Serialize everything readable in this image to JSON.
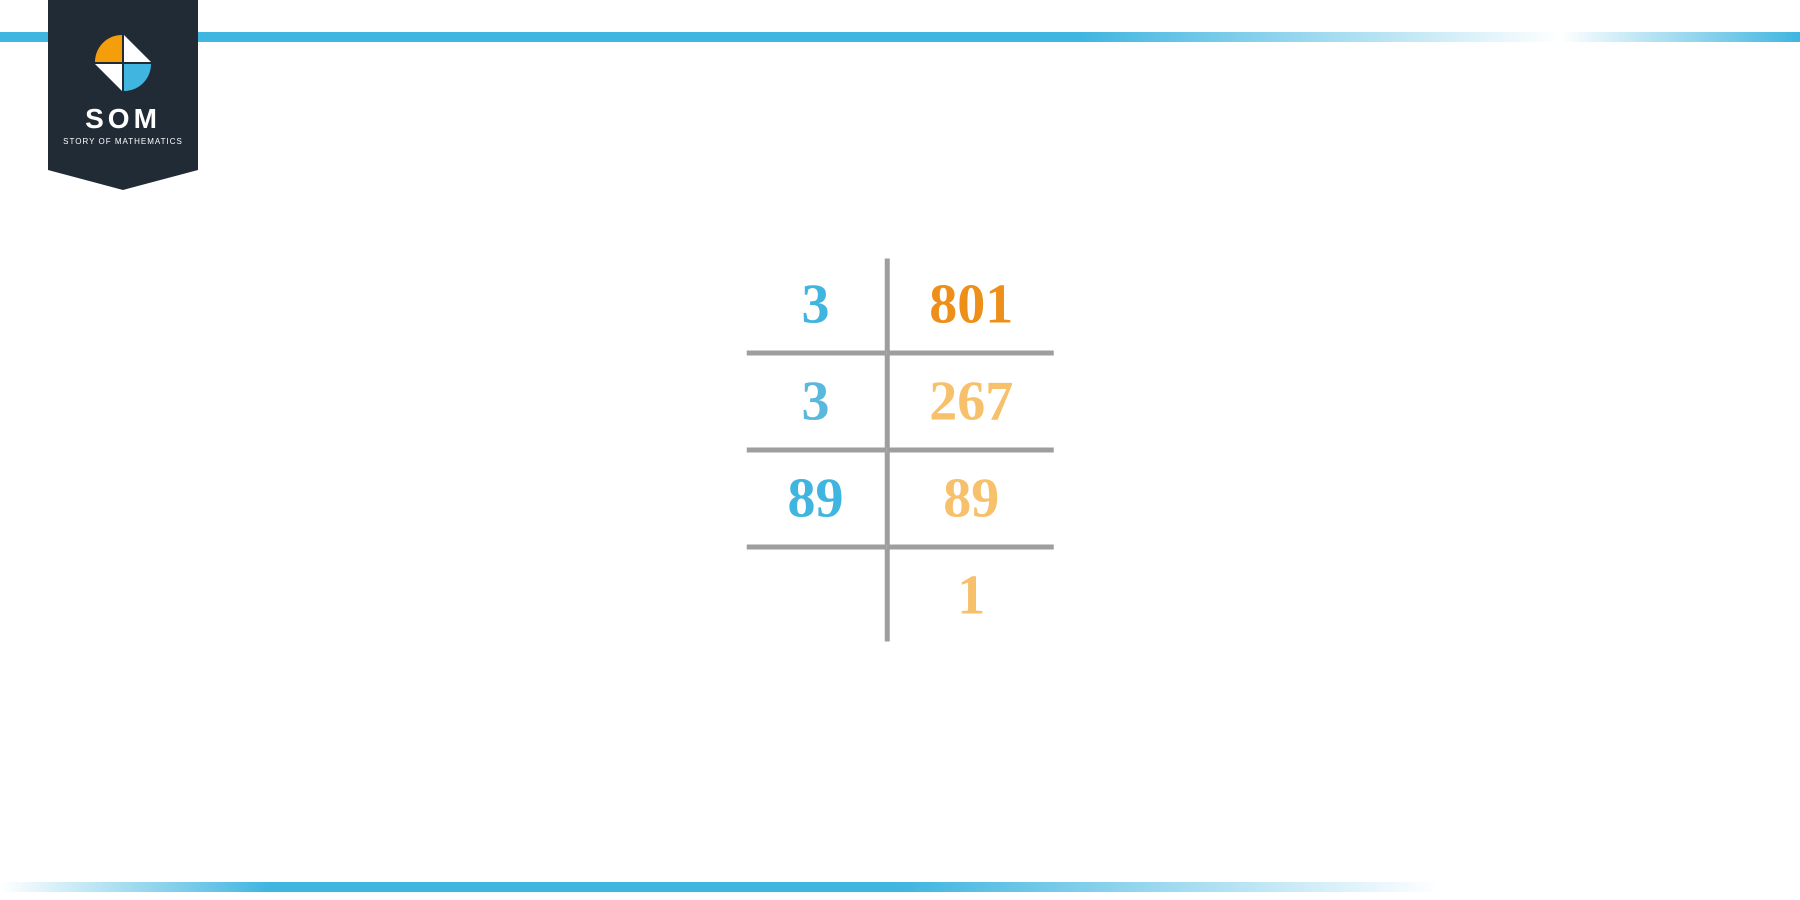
{
  "branding": {
    "name": "SOM",
    "tagline": "STORY OF MATHEMATICS",
    "badge_bg": "#212b36",
    "accent_blue": "#3fb5e0",
    "accent_orange": "#f59e0b",
    "logo_tile_colors": [
      "#f59e0b",
      "#ffffff",
      "#3fb5e0",
      "#ffffff"
    ]
  },
  "layout": {
    "top_bar_left_width": 48,
    "top_bar_right_start": 198,
    "gradient_to": "#ffffff"
  },
  "factorization": {
    "type": "prime-factorization-ladder",
    "line_color": "#9e9e9e",
    "line_width": 5,
    "font_size": 56,
    "font_weight": "bold",
    "rows": [
      {
        "divisor": "3",
        "quotient": "801",
        "divisor_color": "#3fb5e0",
        "quotient_color": "#ee8f1a",
        "underline": true
      },
      {
        "divisor": "3",
        "quotient": "267",
        "divisor_color": "#5ab8dd",
        "quotient_color": "#f7c06b",
        "underline": true
      },
      {
        "divisor": "89",
        "quotient": "89",
        "divisor_color": "#3fb5e0",
        "quotient_color": "#f7c06b",
        "underline": true
      },
      {
        "divisor": "",
        "quotient": "1",
        "divisor_color": "#3fb5e0",
        "quotient_color": "#f7c06b",
        "underline": false
      }
    ]
  }
}
